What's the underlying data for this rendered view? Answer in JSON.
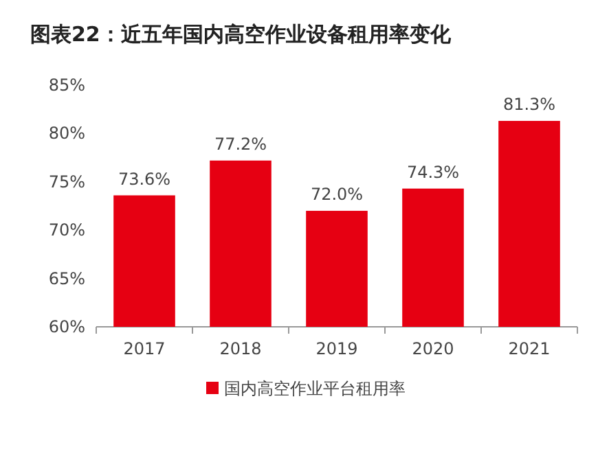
{
  "chart_data": {
    "type": "bar",
    "title": "图表22：近五年国内高空作业设备租用率变化",
    "categories": [
      "2017",
      "2018",
      "2019",
      "2020",
      "2021"
    ],
    "series": [
      {
        "name": "国内高空作业平台租用率",
        "color": "#e60012",
        "values": [
          73.6,
          77.2,
          72.0,
          74.3,
          81.3
        ],
        "value_labels": [
          "73.6%",
          "77.2%",
          "72.0%",
          "74.3%",
          "81.3%"
        ]
      }
    ],
    "ylim": [
      60,
      85
    ],
    "yticks": [
      {
        "value": 60,
        "label": "60%"
      },
      {
        "value": 65,
        "label": "65%"
      },
      {
        "value": 70,
        "label": "70%"
      },
      {
        "value": 75,
        "label": "75%"
      },
      {
        "value": 80,
        "label": "80%"
      },
      {
        "value": 85,
        "label": "85%"
      }
    ],
    "grid": false,
    "legend": "bottom"
  }
}
